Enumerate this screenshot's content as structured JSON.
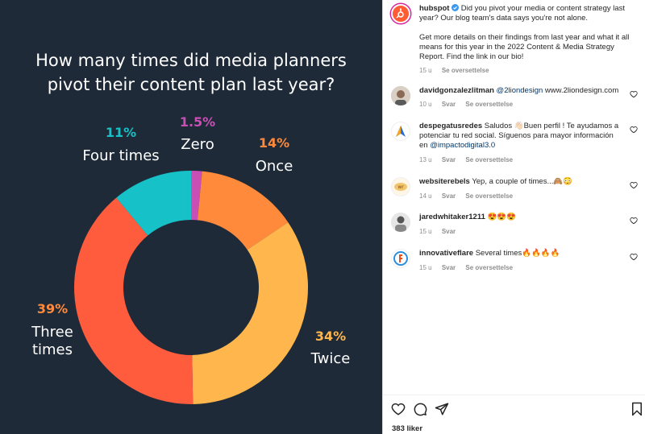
{
  "chart_data": {
    "type": "donut",
    "title_lines": [
      "How many times did media planners",
      "pivot their content plan last year?"
    ],
    "slices": [
      {
        "name": "Zero",
        "value": 1.5,
        "label": "1.5%",
        "color": "#c94fb5"
      },
      {
        "name": "Once",
        "value": 14,
        "label": "14%",
        "color": "#ff8a3c"
      },
      {
        "name": "Twice",
        "value": 34,
        "label": "34%",
        "color": "#ffb74d"
      },
      {
        "name": "Three times",
        "value": 39,
        "label": "39%",
        "color": "#ff5c3d"
      },
      {
        "name": "Four times",
        "value": 11,
        "label": "11%",
        "color": "#16c2c7"
      }
    ]
  },
  "caption": {
    "username": "hubspot",
    "text1": "Did you pivot your media or content strategy last year? Our blog team's data says you're not alone.",
    "text2": "Get more details on their findings from last year and what it all means for this year in the 2022 Content & Media Strategy Report. Find the link in our bio!",
    "time": "15 u",
    "translate": "Se oversettelse"
  },
  "comments": [
    {
      "username": "davidgonzalezlitman",
      "mention": "@2liondesign",
      "text": "www.2liondesign.com",
      "time": "10 u",
      "reply": "Svar",
      "translate": "Se oversettelse"
    },
    {
      "username": "despegatusredes",
      "text": "Saludos 👋🏻Buen perfil ! Te ayudamos a potenciar tu red social. Síguenos para mayor información en",
      "mention": "@impactodigital3.0",
      "time": "13 u",
      "reply": "Svar",
      "translate": "Se oversettelse"
    },
    {
      "username": "websiterebels",
      "text": "Yep, a couple of times...🙈😳",
      "time": "14 u",
      "reply": "Svar",
      "translate": "Se oversettelse"
    },
    {
      "username": "jaredwhitaker1211",
      "text": "😍😍😍",
      "time": "15 u",
      "reply": "Svar"
    },
    {
      "username": "innovativeflare",
      "text": "Several times🔥🔥🔥🔥",
      "time": "15 u",
      "reply": "Svar",
      "translate": "Se oversettelse"
    }
  ],
  "likes": "383 liker",
  "colors": {
    "background": "#1f2a38",
    "link": "#00376b",
    "meta": "#8e8e8e",
    "verified": "#3897f0"
  }
}
